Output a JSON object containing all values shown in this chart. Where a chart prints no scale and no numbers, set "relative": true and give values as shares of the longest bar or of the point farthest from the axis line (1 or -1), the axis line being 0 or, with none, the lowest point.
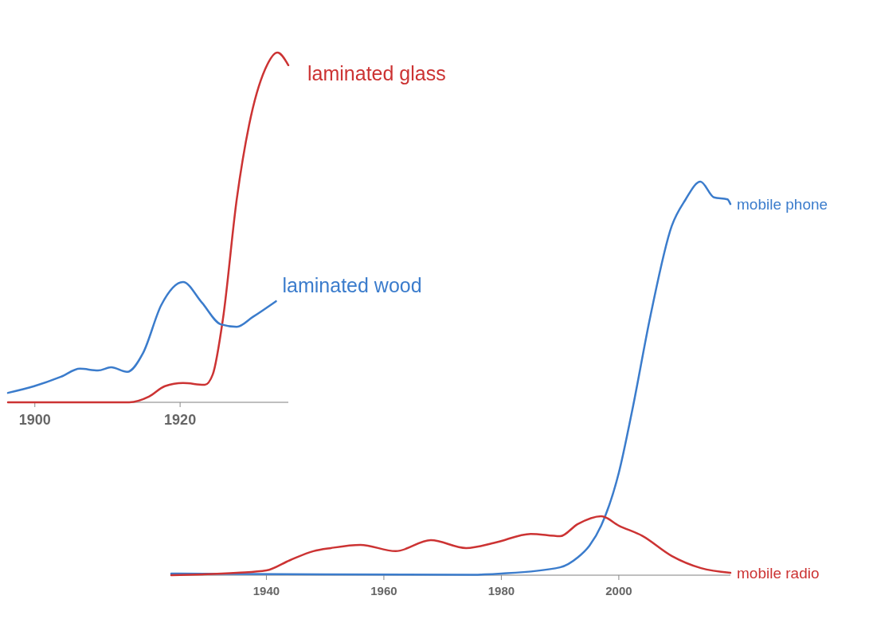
{
  "chart_data": [
    {
      "type": "line",
      "relative": true,
      "xlim": [
        1896.3,
        1934.9
      ],
      "xticks": [
        1900,
        1920
      ],
      "series": [
        {
          "name": "laminated glass",
          "color": "#cc3333",
          "x": [
            1896.3,
            1913,
            1915.7,
            1917.9,
            1920.4,
            1923.4,
            1924.5,
            1925.9,
            1927.8,
            1929.5,
            1931.7,
            1933.4,
            1934.9
          ],
          "values": [
            0,
            0,
            0.016,
            0.046,
            0.055,
            0.05,
            0.08,
            0.239,
            0.581,
            0.793,
            0.952,
            1,
            0.964
          ]
        },
        {
          "name": "laminated wood",
          "color": "#3b7ccc",
          "x": [
            1896.3,
            1899.9,
            1903.6,
            1906.2,
            1908.7,
            1910.5,
            1912.7,
            1914.9,
            1917.4,
            1920.4,
            1923,
            1925.6,
            1927.8,
            1930,
            1933.2
          ],
          "values": [
            0.027,
            0.046,
            0.073,
            0.096,
            0.091,
            0.1,
            0.087,
            0.141,
            0.278,
            0.344,
            0.285,
            0.223,
            0.216,
            0.244,
            0.289
          ]
        }
      ]
    },
    {
      "type": "line",
      "relative": true,
      "xlim": [
        1923.8,
        2019
      ],
      "xticks": [
        1940,
        1960,
        1980,
        2000
      ],
      "series": [
        {
          "name": "mobile phone",
          "color": "#3b7ccc",
          "x": [
            1923.8,
            1950,
            1975,
            1980,
            1990,
            1993,
            1995,
            1997,
            2000,
            2002.3,
            2005.4,
            2009,
            2011.3,
            2013.9,
            2016.2,
            2018.5,
            2019
          ],
          "values": [
            0.004,
            0.002,
            0.001,
            0.004,
            0.02,
            0.045,
            0.075,
            0.126,
            0.26,
            0.42,
            0.66,
            0.887,
            0.953,
            1,
            0.96,
            0.955,
            0.943
          ]
        },
        {
          "name": "mobile radio",
          "color": "#cc3333",
          "x": [
            1923.8,
            1935,
            1940,
            1944,
            1948,
            1951,
            1956,
            1962,
            1968,
            1974,
            1979,
            1985,
            1990,
            1993,
            1997,
            2000,
            2004,
            2009,
            2014,
            2019
          ],
          "values": [
            0,
            0.006,
            0.012,
            0.038,
            0.061,
            0.069,
            0.077,
            0.061,
            0.089,
            0.069,
            0.083,
            0.105,
            0.099,
            0.13,
            0.15,
            0.126,
            0.1,
            0.049,
            0.018,
            0.006
          ]
        }
      ]
    }
  ]
}
